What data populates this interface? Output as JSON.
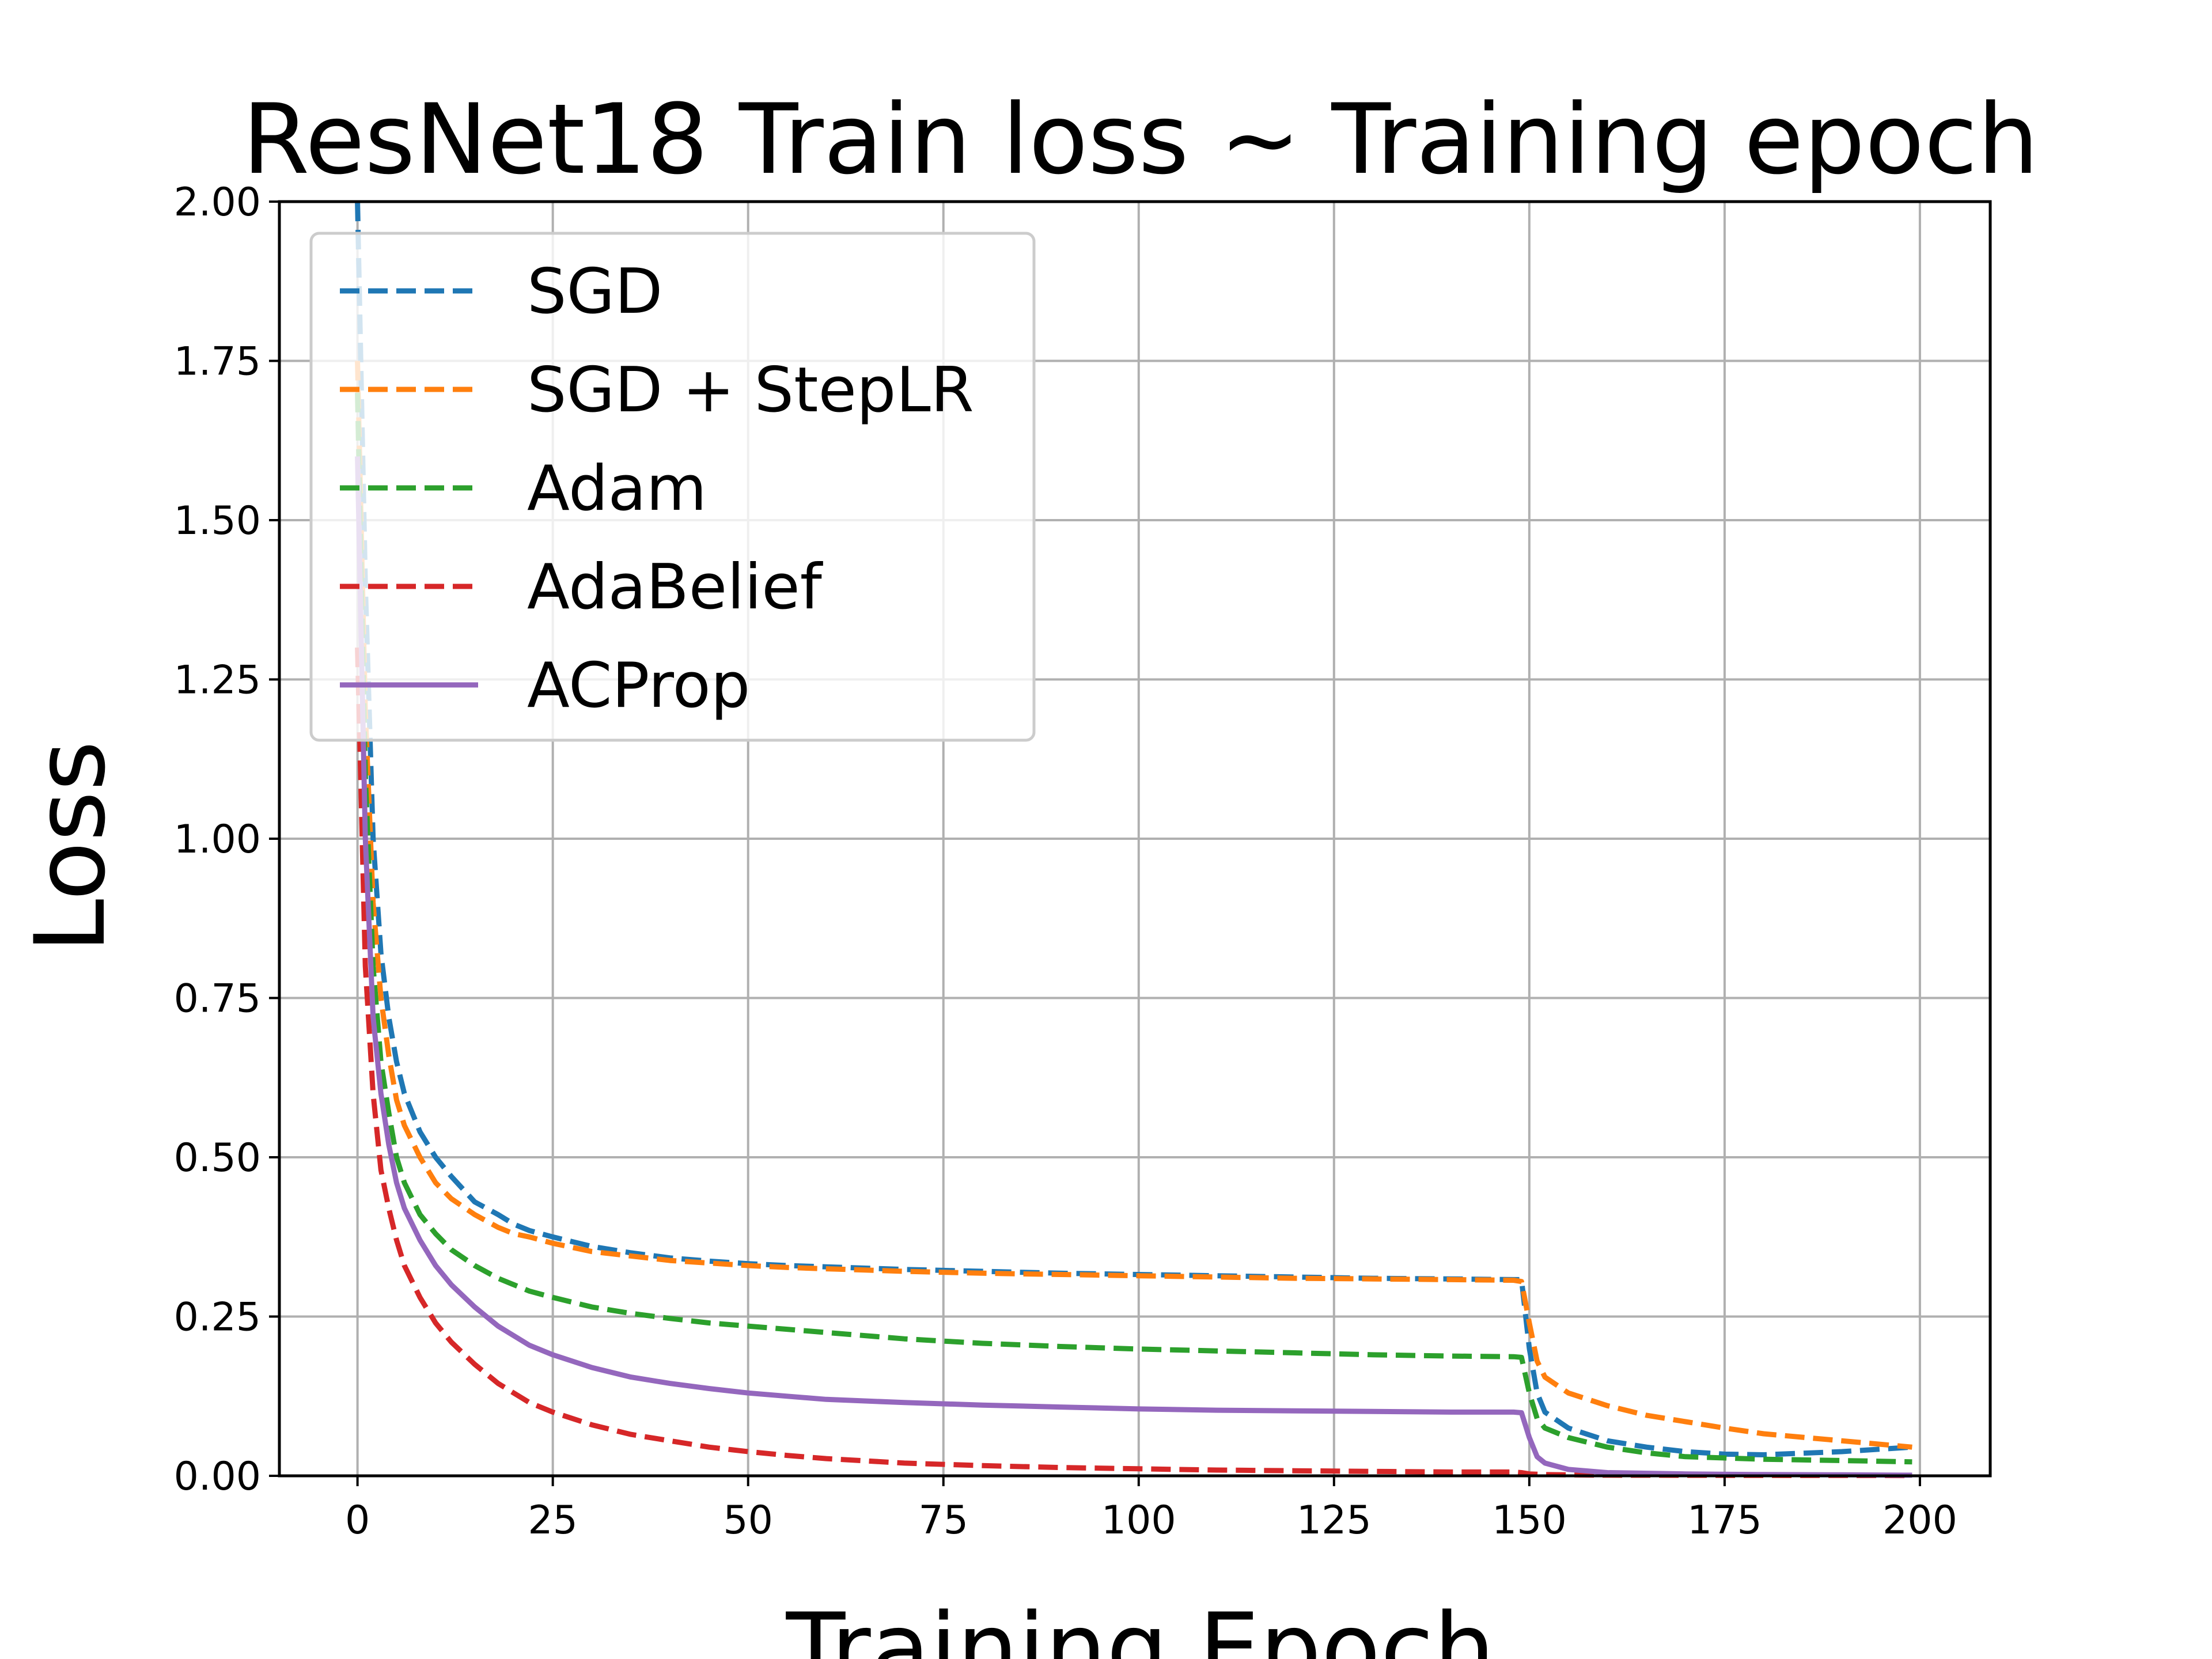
{
  "chart_data": {
    "type": "line",
    "title": "ResNet18 Train loss ~ Training epoch",
    "xlabel": "Training Epoch",
    "ylabel": "Loss",
    "xlim": [
      -10,
      209
    ],
    "ylim": [
      0,
      2
    ],
    "xticks": [
      0,
      25,
      50,
      75,
      100,
      125,
      150,
      175,
      200
    ],
    "xtick_labels": [
      "0",
      "25",
      "50",
      "75",
      "100",
      "125",
      "150",
      "175",
      "200"
    ],
    "yticks": [
      0,
      0.25,
      0.5,
      0.75,
      1.0,
      1.25,
      1.5,
      1.75,
      2.0
    ],
    "ytick_labels": [
      "0.00",
      "0.25",
      "0.50",
      "0.75",
      "1.00",
      "1.25",
      "1.50",
      "1.75",
      "2.00"
    ],
    "grid": true,
    "legend_position": "upper-left",
    "series": [
      {
        "name": "SGD",
        "color": "#1f77b4",
        "style": "dashed",
        "x": [
          0,
          1,
          2,
          3,
          4,
          5,
          6,
          8,
          10,
          12,
          15,
          18,
          20,
          22,
          25,
          30,
          35,
          40,
          45,
          50,
          55,
          60,
          70,
          80,
          90,
          100,
          110,
          120,
          130,
          140,
          148,
          149,
          150,
          151,
          152,
          155,
          160,
          165,
          170,
          175,
          180,
          190,
          199
        ],
        "y": [
          2.0,
          1.4,
          1.0,
          0.82,
          0.72,
          0.65,
          0.6,
          0.54,
          0.5,
          0.47,
          0.43,
          0.41,
          0.395,
          0.385,
          0.375,
          0.36,
          0.35,
          0.342,
          0.337,
          0.333,
          0.33,
          0.328,
          0.324,
          0.321,
          0.318,
          0.316,
          0.314,
          0.312,
          0.31,
          0.309,
          0.308,
          0.308,
          0.2,
          0.13,
          0.1,
          0.075,
          0.055,
          0.045,
          0.038,
          0.034,
          0.033,
          0.038,
          0.045
        ]
      },
      {
        "name": "SGD + StepLR",
        "color": "#ff7f0e",
        "style": "dashed",
        "x": [
          0,
          1,
          2,
          3,
          4,
          5,
          6,
          8,
          10,
          12,
          15,
          18,
          20,
          22,
          25,
          30,
          35,
          40,
          45,
          50,
          55,
          60,
          70,
          80,
          90,
          100,
          110,
          120,
          130,
          140,
          148,
          149,
          150,
          151,
          152,
          155,
          160,
          165,
          170,
          175,
          180,
          190,
          199
        ],
        "y": [
          1.75,
          1.2,
          0.9,
          0.75,
          0.66,
          0.59,
          0.55,
          0.5,
          0.46,
          0.435,
          0.41,
          0.39,
          0.38,
          0.375,
          0.365,
          0.352,
          0.345,
          0.338,
          0.334,
          0.33,
          0.327,
          0.325,
          0.321,
          0.318,
          0.316,
          0.314,
          0.312,
          0.31,
          0.309,
          0.308,
          0.307,
          0.305,
          0.24,
          0.18,
          0.155,
          0.13,
          0.11,
          0.095,
          0.085,
          0.075,
          0.066,
          0.055,
          0.045
        ]
      },
      {
        "name": "Adam",
        "color": "#2ca02c",
        "style": "dashed",
        "x": [
          0,
          1,
          2,
          3,
          4,
          5,
          6,
          8,
          10,
          12,
          15,
          18,
          20,
          22,
          25,
          30,
          35,
          40,
          45,
          50,
          55,
          60,
          70,
          80,
          90,
          100,
          110,
          120,
          130,
          140,
          148,
          149,
          150,
          151,
          152,
          155,
          160,
          165,
          170,
          175,
          180,
          190,
          199
        ],
        "y": [
          1.7,
          1.1,
          0.8,
          0.65,
          0.57,
          0.5,
          0.46,
          0.41,
          0.38,
          0.355,
          0.33,
          0.31,
          0.3,
          0.29,
          0.28,
          0.265,
          0.255,
          0.247,
          0.24,
          0.235,
          0.23,
          0.225,
          0.215,
          0.208,
          0.203,
          0.199,
          0.196,
          0.193,
          0.19,
          0.188,
          0.187,
          0.186,
          0.13,
          0.09,
          0.075,
          0.06,
          0.045,
          0.036,
          0.03,
          0.028,
          0.026,
          0.024,
          0.022
        ]
      },
      {
        "name": "AdaBelief",
        "color": "#d62728",
        "style": "dashed",
        "x": [
          0,
          1,
          2,
          3,
          4,
          5,
          6,
          8,
          10,
          12,
          15,
          18,
          20,
          22,
          25,
          30,
          35,
          40,
          45,
          50,
          55,
          60,
          70,
          80,
          90,
          100,
          110,
          120,
          130,
          140,
          148,
          149,
          150,
          152,
          155,
          160,
          170,
          180,
          190,
          199
        ],
        "y": [
          1.3,
          0.8,
          0.6,
          0.48,
          0.42,
          0.37,
          0.33,
          0.28,
          0.24,
          0.21,
          0.175,
          0.145,
          0.13,
          0.115,
          0.1,
          0.08,
          0.065,
          0.055,
          0.045,
          0.038,
          0.032,
          0.027,
          0.02,
          0.016,
          0.013,
          0.011,
          0.009,
          0.008,
          0.007,
          0.006,
          0.006,
          0.005,
          0.003,
          0.002,
          0.0015,
          0.001,
          0.0008,
          0.0006,
          0.0005,
          0.0004
        ]
      },
      {
        "name": "ACProp",
        "color": "#9467bd",
        "style": "solid",
        "x": [
          0,
          1,
          2,
          3,
          4,
          5,
          6,
          8,
          10,
          12,
          15,
          18,
          20,
          22,
          25,
          30,
          35,
          40,
          45,
          50,
          55,
          60,
          70,
          80,
          90,
          100,
          110,
          120,
          130,
          140,
          148,
          149,
          150,
          151,
          152,
          155,
          160,
          170,
          180,
          190,
          199
        ],
        "y": [
          1.6,
          1.0,
          0.72,
          0.6,
          0.52,
          0.46,
          0.42,
          0.37,
          0.33,
          0.3,
          0.265,
          0.235,
          0.22,
          0.205,
          0.19,
          0.17,
          0.155,
          0.145,
          0.137,
          0.13,
          0.125,
          0.12,
          0.115,
          0.111,
          0.108,
          0.105,
          0.103,
          0.102,
          0.101,
          0.1,
          0.1,
          0.099,
          0.06,
          0.03,
          0.02,
          0.01,
          0.005,
          0.003,
          0.002,
          0.0015,
          0.001
        ]
      }
    ]
  }
}
